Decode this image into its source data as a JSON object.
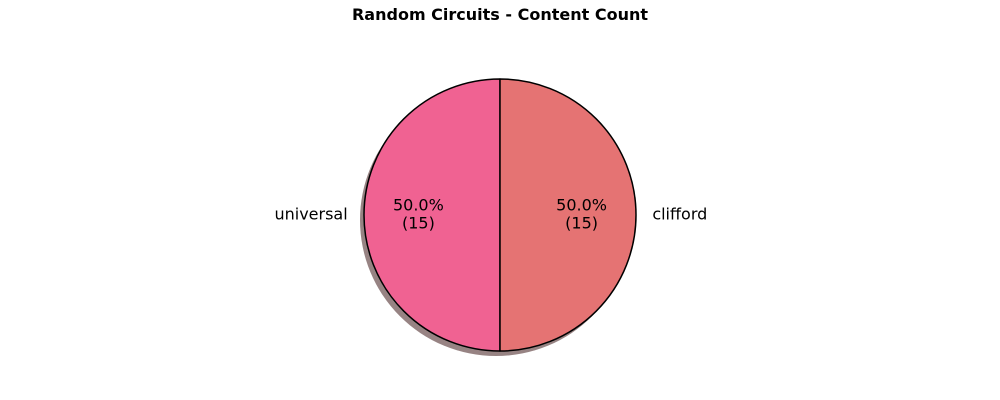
{
  "chart_data": {
    "type": "pie",
    "title": "Random Circuits - Content Count",
    "slices": [
      {
        "label": "universal",
        "value": 15,
        "percent_label": "50.0%",
        "count_label": "(15)",
        "color": "#f06292"
      },
      {
        "label": "clifford",
        "value": 15,
        "percent_label": "50.0%",
        "count_label": "(15)",
        "color": "#e57373"
      }
    ],
    "shadow": true,
    "edge_color": "#000000",
    "start_angle_deg": 90,
    "legend": "none"
  }
}
